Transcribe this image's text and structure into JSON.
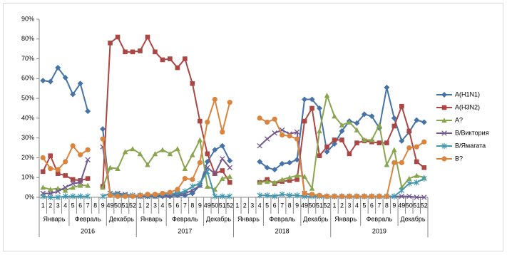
{
  "chart_data": {
    "type": "line",
    "categories": [
      "1",
      "2",
      "3",
      "4",
      "5",
      "6",
      "7",
      "8",
      "9",
      "49",
      "50",
      "51",
      "52",
      "1",
      "2",
      "3",
      "4",
      "5",
      "6",
      "7",
      "8",
      "9",
      "49",
      "50",
      "51",
      "52",
      "1",
      "2",
      "3",
      "4",
      "5",
      "6",
      "7",
      "8",
      "9",
      "49",
      "50",
      "51",
      "52",
      "1",
      "2",
      "3",
      "4",
      "5",
      "6",
      "7",
      "8",
      "9",
      "49",
      "50",
      "51",
      "52"
    ],
    "category_groups": {
      "months": [
        {
          "label": "Январь",
          "count": 4
        },
        {
          "label": "Февраль",
          "count": 5
        },
        {
          "label": "Декабрь",
          "count": 4
        },
        {
          "label": "Январь",
          "count": 4
        },
        {
          "label": "Февраль",
          "count": 5
        },
        {
          "label": "Декабрь",
          "count": 4
        },
        {
          "label": "Январь",
          "count": 4
        },
        {
          "label": "Февраль",
          "count": 5
        },
        {
          "label": "Декабрь",
          "count": 4
        },
        {
          "label": "Январь",
          "count": 4
        },
        {
          "label": "Февраль",
          "count": 5
        },
        {
          "label": "Декабрь",
          "count": 4
        }
      ],
      "years": [
        {
          "label": "2016",
          "count": 13
        },
        {
          "label": "2017",
          "count": 13
        },
        {
          "label": "2018",
          "count": 13
        },
        {
          "label": "2019",
          "count": 13
        }
      ]
    },
    "ylim": [
      0,
      90
    ],
    "yticks": [
      {
        "value": 0,
        "label": "0%"
      },
      {
        "value": 10,
        "label": "10%"
      },
      {
        "value": 20,
        "label": "20%"
      },
      {
        "value": 30,
        "label": "30%"
      },
      {
        "value": 40,
        "label": "40%"
      },
      {
        "value": 50,
        "label": "50%"
      },
      {
        "value": 60,
        "label": "60%"
      },
      {
        "value": 70,
        "label": "70%"
      },
      {
        "value": 80,
        "label": "80%"
      },
      {
        "value": 90,
        "label": "90%"
      }
    ],
    "grid": false,
    "legend": "right",
    "series": [
      {
        "name": "A(H1N1)",
        "color": "#4572A7",
        "marker": "diamond",
        "values": [
          59,
          58.5,
          65.5,
          60.5,
          52,
          57.5,
          43.5,
          null,
          34.5,
          1,
          1,
          0.5,
          0.5,
          0.5,
          0.5,
          0.5,
          0.5,
          0.5,
          1,
          1,
          2,
          6,
          18,
          24,
          26,
          18.5,
          null,
          null,
          null,
          18,
          15,
          14,
          17,
          17.5,
          19,
          49.5,
          49.5,
          45,
          23,
          27,
          33.5,
          38.5,
          37.5,
          42,
          41,
          35,
          55.5,
          40,
          28.5,
          33,
          39,
          38
        ]
      },
      {
        "name": "A(H3N2)",
        "color": "#AA4643",
        "marker": "square",
        "values": [
          13,
          21,
          12,
          11,
          9,
          8.5,
          9.5,
          null,
          5.5,
          78,
          81,
          73.5,
          73.5,
          74,
          81,
          73.5,
          69.5,
          70,
          65.5,
          70,
          57.5,
          38.5,
          22,
          12,
          13.5,
          7.5,
          null,
          null,
          null,
          7.5,
          9,
          7,
          8,
          8.5,
          9,
          38.5,
          45,
          21,
          25.5,
          29,
          29,
          22,
          27.5,
          28.5,
          28,
          27.5,
          27.5,
          36,
          46,
          33.5,
          18,
          15
        ]
      },
      {
        "name": "A?",
        "color": "#89A54E",
        "marker": "triangle",
        "values": [
          5,
          4,
          4.5,
          3.5,
          5,
          6,
          6,
          null,
          5,
          15,
          14.5,
          23,
          24.5,
          22,
          16.5,
          22,
          24,
          22,
          24.5,
          14.5,
          21.5,
          29,
          5.5,
          4,
          9.5,
          10.5,
          null,
          null,
          null,
          7.5,
          8,
          7.5,
          9,
          10,
          11,
          10.5,
          4.5,
          33.5,
          51.5,
          41,
          36.5,
          38,
          34,
          29,
          29,
          36.5,
          16.5,
          24,
          5,
          9.5,
          11,
          10
        ]
      },
      {
        "name": "B/Виктория",
        "color": "#71588F",
        "marker": "x",
        "values": [
          2,
          2,
          3,
          5,
          7,
          7.5,
          19,
          null,
          25.5,
          2,
          2,
          1.5,
          1,
          0.5,
          0.5,
          0.5,
          1,
          1,
          1.5,
          2,
          3.5,
          6,
          15,
          12,
          19.5,
          15,
          null,
          null,
          null,
          26,
          29.5,
          32.5,
          34,
          32,
          33,
          2,
          1,
          0.5,
          0.5,
          0.5,
          0.5,
          0.5,
          0.5,
          0.5,
          0.5,
          0.5,
          0.5,
          0.5,
          0.5,
          0.5,
          0,
          0
        ]
      },
      {
        "name": "B/Ямагата",
        "color": "#4198AF",
        "marker": "star",
        "values": [
          0.5,
          0,
          0,
          0.5,
          0.5,
          0.5,
          0.5,
          null,
          0.5,
          2,
          1.5,
          1,
          1,
          1,
          1,
          1,
          1.5,
          2,
          2,
          3,
          5.5,
          7,
          13,
          0.5,
          0.5,
          0.5,
          null,
          null,
          null,
          1,
          1,
          0.5,
          1.5,
          1,
          1,
          0.5,
          0.5,
          0.5,
          0.5,
          0.5,
          0.5,
          0.5,
          0.5,
          0.5,
          0.5,
          0.5,
          0.5,
          0.5,
          3.5,
          7,
          7.5,
          9.5
        ]
      },
      {
        "name": "B?",
        "color": "#DB843D",
        "marker": "circle",
        "values": [
          20,
          14.5,
          14,
          18,
          26,
          21.5,
          24,
          null,
          29.5,
          1,
          0.5,
          0.5,
          0.5,
          1,
          1.5,
          1.5,
          2,
          2.5,
          4,
          9.5,
          9,
          17.5,
          38,
          49.5,
          33,
          48,
          null,
          null,
          null,
          40,
          38,
          39.5,
          31.5,
          31,
          29.5,
          2,
          1.5,
          1,
          0.5,
          0.5,
          0.5,
          0.5,
          0.5,
          0.5,
          0.5,
          0.5,
          0.5,
          17.5,
          17.5,
          25,
          25.5,
          28
        ]
      }
    ]
  }
}
